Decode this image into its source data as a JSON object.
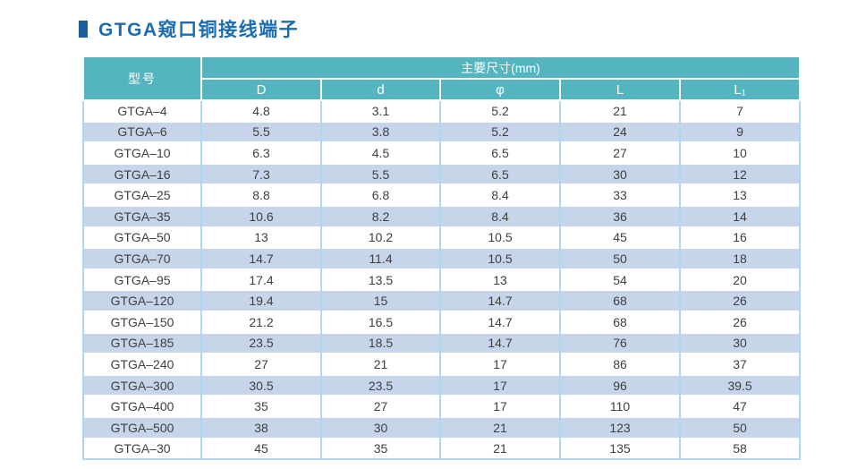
{
  "title": {
    "text": "GTGA窥口铜接线端子",
    "text_color": "#1b6db1",
    "bullet_color": "#1a5ca0"
  },
  "table": {
    "colors": {
      "header_bg": "#54b5c1",
      "header_text": "#ffffff",
      "stripe_bg": "#c6d5ea",
      "row_bg": "#ffffff",
      "grid_line": "#add7f3",
      "row_divider": "#ffffff",
      "body_text": "#3f3f3f"
    },
    "header": {
      "model": "型号",
      "group": "主要尺寸(mm)",
      "columns": [
        "D",
        "d",
        "φ",
        "L",
        "L₁"
      ]
    },
    "rows": [
      {
        "model": "GTGA–4",
        "values": [
          "4.8",
          "3.1",
          "5.2",
          "21",
          "7"
        ]
      },
      {
        "model": "GTGA–6",
        "values": [
          "5.5",
          "3.8",
          "5.2",
          "24",
          "9"
        ]
      },
      {
        "model": "GTGA–10",
        "values": [
          "6.3",
          "4.5",
          "6.5",
          "27",
          "10"
        ]
      },
      {
        "model": "GTGA–16",
        "values": [
          "7.3",
          "5.5",
          "6.5",
          "30",
          "12"
        ]
      },
      {
        "model": "GTGA–25",
        "values": [
          "8.8",
          "6.8",
          "8.4",
          "33",
          "13"
        ]
      },
      {
        "model": "GTGA–35",
        "values": [
          "10.6",
          "8.2",
          "8.4",
          "36",
          "14"
        ]
      },
      {
        "model": "GTGA–50",
        "values": [
          "13",
          "10.2",
          "10.5",
          "45",
          "16"
        ]
      },
      {
        "model": "GTGA–70",
        "values": [
          "14.7",
          "11.4",
          "10.5",
          "50",
          "18"
        ]
      },
      {
        "model": "GTGA–95",
        "values": [
          "17.4",
          "13.5",
          "13",
          "54",
          "20"
        ]
      },
      {
        "model": "GTGA–120",
        "values": [
          "19.4",
          "15",
          "14.7",
          "68",
          "26"
        ]
      },
      {
        "model": "GTGA–150",
        "values": [
          "21.2",
          "16.5",
          "14.7",
          "68",
          "26"
        ]
      },
      {
        "model": "GTGA–185",
        "values": [
          "23.5",
          "18.5",
          "14.7",
          "76",
          "30"
        ]
      },
      {
        "model": "GTGA–240",
        "values": [
          "27",
          "21",
          "17",
          "86",
          "37"
        ]
      },
      {
        "model": "GTGA–300",
        "values": [
          "30.5",
          "23.5",
          "17",
          "96",
          "39.5"
        ]
      },
      {
        "model": "GTGA–400",
        "values": [
          "35",
          "27",
          "17",
          "110",
          "47"
        ]
      },
      {
        "model": "GTGA–500",
        "values": [
          "38",
          "30",
          "21",
          "123",
          "50"
        ]
      },
      {
        "model": "GTGA–30",
        "values": [
          "45",
          "35",
          "21",
          "135",
          "58"
        ]
      }
    ]
  }
}
